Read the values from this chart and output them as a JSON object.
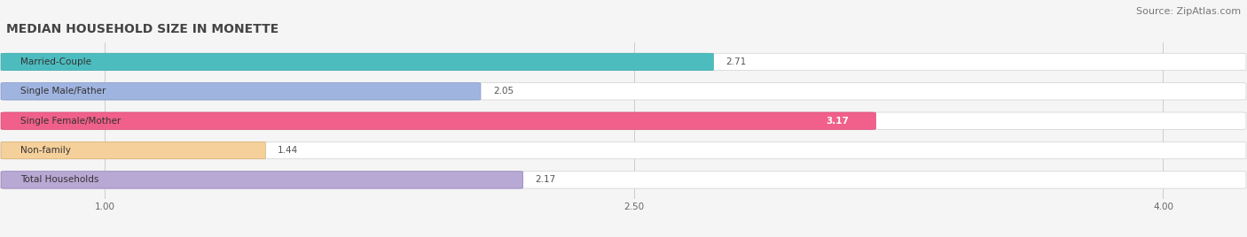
{
  "title": "MEDIAN HOUSEHOLD SIZE IN MONETTE",
  "source": "Source: ZipAtlas.com",
  "categories": [
    "Married-Couple",
    "Single Male/Father",
    "Single Female/Mother",
    "Non-family",
    "Total Households"
  ],
  "values": [
    2.71,
    2.05,
    3.17,
    1.44,
    2.17
  ],
  "bar_colors": [
    "#4cbcbf",
    "#a0b4e0",
    "#f0608a",
    "#f5d09a",
    "#b8a8d4"
  ],
  "bar_edge_colors": [
    "#3aacaf",
    "#8098cc",
    "#d84878",
    "#d4b070",
    "#9080b8"
  ],
  "xmin": 0.72,
  "xmax": 4.22,
  "xticks": [
    1.0,
    2.5,
    4.0
  ],
  "background_color": "#f5f5f5",
  "bar_bg_color": "#ffffff",
  "title_fontsize": 10,
  "source_fontsize": 8,
  "label_fontsize": 7.5,
  "value_fontsize": 7.5,
  "value_color_highlight": "#ffffff",
  "value_color_normal": "#555555"
}
